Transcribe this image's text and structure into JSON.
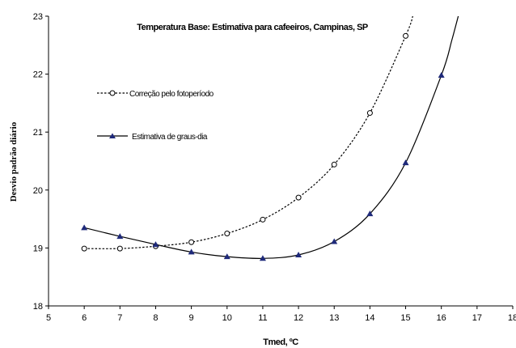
{
  "chart_data": {
    "type": "line",
    "title": "Temperatura Base: Estimativa para cafeeiros, Campinas, SP",
    "xlabel": "Tmed, ºC",
    "ylabel": "Desvio padrão diário",
    "xlim": [
      5,
      18
    ],
    "ylim": [
      18,
      23
    ],
    "x_ticks": [
      5,
      6,
      7,
      8,
      9,
      10,
      11,
      12,
      13,
      14,
      15,
      16,
      17,
      18
    ],
    "y_ticks": [
      18,
      19,
      20,
      21,
      22,
      23
    ],
    "grid": false,
    "legend_position": "left",
    "series": [
      {
        "name": "Correção pelo fotoperíodo",
        "marker": "open-circle",
        "line_style": "dotted",
        "color": "#000000",
        "points": [
          {
            "x": 6,
            "y": 18.99
          },
          {
            "x": 7,
            "y": 18.99
          },
          {
            "x": 8,
            "y": 19.03
          },
          {
            "x": 9,
            "y": 19.1
          },
          {
            "x": 10,
            "y": 19.25
          },
          {
            "x": 11,
            "y": 19.49
          },
          {
            "x": 12,
            "y": 19.87
          },
          {
            "x": 13,
            "y": 20.44
          },
          {
            "x": 14,
            "y": 21.33
          },
          {
            "x": 15,
            "y": 22.66
          }
        ],
        "curve_points": [
          {
            "x": 15,
            "y": 22.66
          },
          {
            "x": 15.2,
            "y": 23.0
          }
        ]
      },
      {
        "name": "Estimativa de graus-dia",
        "marker": "filled-triangle",
        "line_style": "solid",
        "color": "#000000",
        "marker_color": "#1f2a7a",
        "points": [
          {
            "x": 6,
            "y": 19.35
          },
          {
            "x": 7,
            "y": 19.2
          },
          {
            "x": 8,
            "y": 19.06
          },
          {
            "x": 9,
            "y": 18.93
          },
          {
            "x": 10,
            "y": 18.85
          },
          {
            "x": 11,
            "y": 18.82
          },
          {
            "x": 12,
            "y": 18.88
          },
          {
            "x": 13,
            "y": 19.11
          },
          {
            "x": 14,
            "y": 19.59
          },
          {
            "x": 15,
            "y": 20.47
          },
          {
            "x": 16,
            "y": 21.98
          }
        ],
        "curve_points": [
          {
            "x": 16,
            "y": 21.98
          },
          {
            "x": 16.3,
            "y": 22.6
          },
          {
            "x": 16.6,
            "y": 23.3
          }
        ]
      }
    ]
  }
}
